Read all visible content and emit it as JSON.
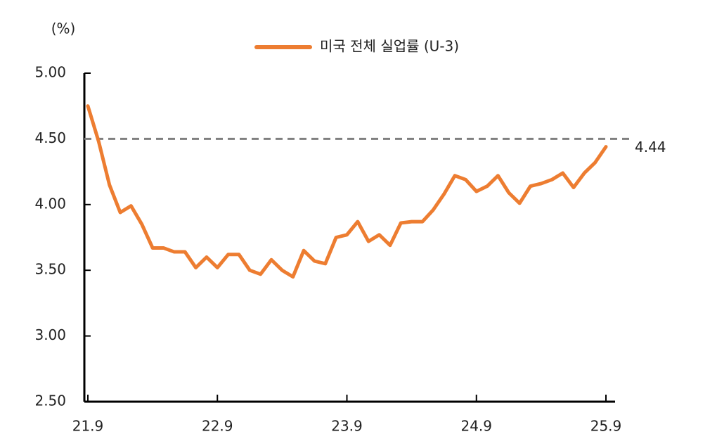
{
  "chart_data": {
    "type": "line",
    "y_unit_label": "(%)",
    "categories": [
      "21.9",
      null,
      null,
      null,
      null,
      null,
      null,
      null,
      null,
      null,
      null,
      null,
      "22.9",
      null,
      null,
      null,
      null,
      null,
      null,
      null,
      null,
      null,
      null,
      null,
      "23.9",
      null,
      null,
      null,
      null,
      null,
      null,
      null,
      null,
      null,
      null,
      null,
      "24.9",
      null,
      null,
      null,
      null,
      null,
      null,
      null,
      null,
      null,
      null,
      null,
      "25.9"
    ],
    "series": [
      {
        "name": "미국 전체 실업률 (U-3)",
        "color": "#ed7d31",
        "values": [
          4.75,
          4.48,
          4.15,
          3.94,
          3.99,
          3.85,
          3.67,
          3.67,
          3.64,
          3.64,
          3.52,
          3.6,
          3.52,
          3.62,
          3.62,
          3.5,
          3.47,
          3.58,
          3.5,
          3.45,
          3.65,
          3.57,
          3.55,
          3.75,
          3.77,
          3.87,
          3.72,
          3.77,
          3.69,
          3.86,
          3.87,
          3.87,
          3.96,
          4.08,
          4.22,
          4.19,
          4.1,
          4.14,
          4.22,
          4.09,
          4.01,
          4.14,
          4.16,
          4.19,
          4.24,
          4.13,
          4.24,
          4.32,
          4.44
        ]
      }
    ],
    "ylim": [
      2.5,
      5
    ],
    "yticks": [
      {
        "value": 2.5,
        "label": "2.50"
      },
      {
        "value": 3,
        "label": "3.00"
      },
      {
        "value": 3.5,
        "label": "3.50"
      },
      {
        "value": 4,
        "label": "4.00"
      },
      {
        "value": 4.5,
        "label": "4.50"
      },
      {
        "value": 5,
        "label": "5.00"
      }
    ],
    "reference_line": {
      "value": 4.5,
      "color": "#7f7f7f"
    },
    "annotation": "4.44",
    "legend": "top"
  }
}
